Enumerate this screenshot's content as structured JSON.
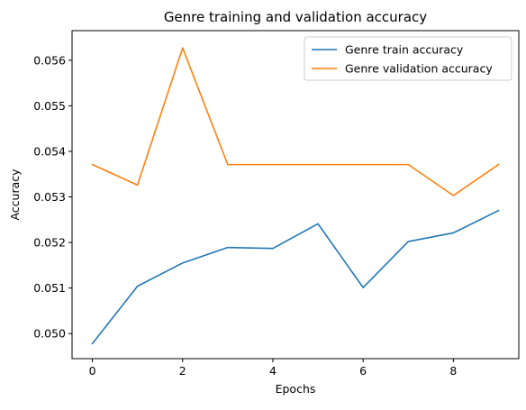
{
  "chart_data": {
    "type": "line",
    "title": "Genre training and validation accuracy",
    "xlabel": "Epochs",
    "ylabel": "Accuracy",
    "x": [
      0,
      1,
      2,
      3,
      4,
      5,
      6,
      7,
      8,
      9
    ],
    "xlim": [
      -0.45,
      9.45
    ],
    "ylim": [
      0.04945,
      0.05665
    ],
    "xticks": [
      0,
      2,
      4,
      6,
      8
    ],
    "xtick_labels": [
      "0",
      "2",
      "4",
      "6",
      "8"
    ],
    "yticks": [
      0.05,
      0.051,
      0.052,
      0.053,
      0.054,
      0.055,
      0.056
    ],
    "ytick_labels": [
      "0.050",
      "0.051",
      "0.052",
      "0.053",
      "0.054",
      "0.055",
      "0.056"
    ],
    "grid": false,
    "legend_position": "top-right",
    "series": [
      {
        "name": "Genre train accuracy",
        "color": "#1f77b4",
        "values": [
          0.04978,
          0.05104,
          0.05155,
          0.05189,
          0.05187,
          0.05241,
          0.05101,
          0.05202,
          0.05221,
          0.0527
        ]
      },
      {
        "name": "Genre validation accuracy",
        "color": "#ff7f0e",
        "values": [
          0.05371,
          0.05326,
          0.05627,
          0.05371,
          0.05371,
          0.05371,
          0.05371,
          0.05371,
          0.05303,
          0.05371
        ]
      }
    ]
  }
}
